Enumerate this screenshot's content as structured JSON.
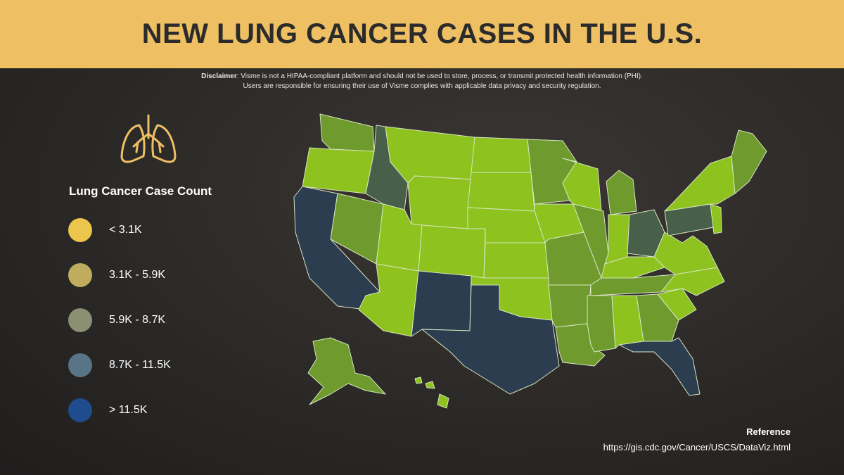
{
  "header": {
    "title": "NEW LUNG CANCER CASES IN THE U.S."
  },
  "disclaimer": {
    "label": "Disclaimer",
    "text": ": Visme is not a HIPAA-compliant platform and should not be used to store, process, or transmit protected health information (PHI).",
    "line2": "Users are responsible for ensuring their use of Visme complies with applicable data privacy and security regulation."
  },
  "legend": {
    "title": "Lung Cancer Case Count",
    "items": [
      {
        "label": "< 3.1K",
        "color": "#ecc54c"
      },
      {
        "label": "3.1K - 5.9K",
        "color": "#bfac5e"
      },
      {
        "label": "5.9K - 8.7K",
        "color": "#8b9073"
      },
      {
        "label": "8.7K - 11.5K",
        "color": "#5a7487"
      },
      {
        "label": "> 11.5K",
        "color": "#1f4c8c"
      }
    ]
  },
  "reference": {
    "title": "Reference",
    "url": "https://gis.cdc.gov/Cancer/USCS/DataViz.html"
  }
}
